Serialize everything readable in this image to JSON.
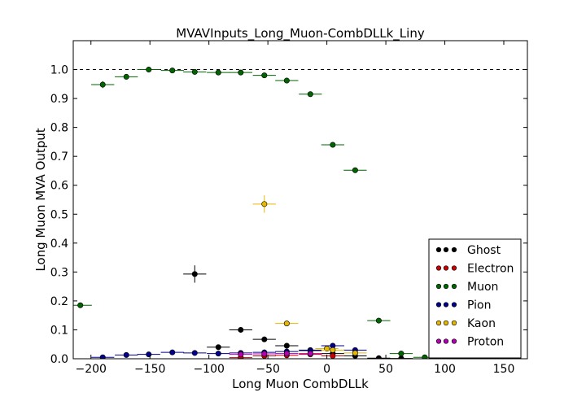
{
  "chart_data": {
    "type": "scatter",
    "title": "MVAVInputs_Long_Muon-CombDLLk_Liny",
    "xlabel": "Long Muon CombDLLk",
    "ylabel": "Long Muon MVA Output",
    "xlim": [
      -215,
      170
    ],
    "ylim": [
      0.0,
      1.1
    ],
    "xticks": [
      -200,
      -150,
      -100,
      -50,
      0,
      50,
      100,
      150
    ],
    "xtick_labels": [
      "−200",
      "−150",
      "−100",
      "−50",
      "0",
      "50",
      "100",
      "150"
    ],
    "yticks": [
      0.0,
      0.1,
      0.2,
      0.3,
      0.4,
      0.5,
      0.6,
      0.7,
      0.8,
      0.9,
      1.0
    ],
    "ytick_labels": [
      "0.0",
      "0.1",
      "0.2",
      "0.3",
      "0.4",
      "0.5",
      "0.6",
      "0.7",
      "0.8",
      "0.9",
      "1.0"
    ],
    "reference_line": {
      "y": 1.0,
      "style": "dashed"
    },
    "grid": false,
    "legend_position": "lower-right",
    "bin_half_width": 9.75,
    "series": [
      {
        "name": "Ghost",
        "color": "#000000",
        "points": [
          {
            "x": -112,
            "y": 0.293,
            "yerr": 0.03
          },
          {
            "x": -92,
            "y": 0.04,
            "yerr": 0.006
          },
          {
            "x": -73,
            "y": 0.1,
            "yerr": 0.006
          },
          {
            "x": -53,
            "y": 0.067,
            "yerr": 0.005
          },
          {
            "x": -34,
            "y": 0.045,
            "yerr": 0.004
          },
          {
            "x": -14,
            "y": 0.03,
            "yerr": 0.003
          },
          {
            "x": 5,
            "y": 0.018,
            "yerr": 0.003
          },
          {
            "x": 24,
            "y": 0.01,
            "yerr": 0.002
          },
          {
            "x": 44,
            "y": 0.002,
            "yerr": 0.001
          },
          {
            "x": 63,
            "y": 0.001,
            "yerr": 0.001
          }
        ]
      },
      {
        "name": "Electron",
        "color": "#cc0000",
        "points": [
          {
            "x": -73,
            "y": 0.004,
            "yerr": 0.002
          },
          {
            "x": -53,
            "y": 0.01,
            "yerr": 0.002
          },
          {
            "x": -34,
            "y": 0.012,
            "yerr": 0.002
          },
          {
            "x": -14,
            "y": 0.015,
            "yerr": 0.002
          },
          {
            "x": 5,
            "y": 0.01,
            "yerr": 0.002
          }
        ]
      },
      {
        "name": "Muon",
        "color": "#006400",
        "points": [
          {
            "x": -209,
            "y": 0.185,
            "yerr": 0.004
          },
          {
            "x": -190,
            "y": 0.948,
            "yerr": 0.012
          },
          {
            "x": -170,
            "y": 0.975,
            "yerr": 0.005
          },
          {
            "x": -151,
            "y": 1.0,
            "yerr": 0.002
          },
          {
            "x": -131,
            "y": 0.997,
            "yerr": 0.003
          },
          {
            "x": -112,
            "y": 0.992,
            "yerr": 0.003
          },
          {
            "x": -92,
            "y": 0.99,
            "yerr": 0.003
          },
          {
            "x": -73,
            "y": 0.99,
            "yerr": 0.004
          },
          {
            "x": -53,
            "y": 0.98,
            "yerr": 0.004
          },
          {
            "x": -34,
            "y": 0.962,
            "yerr": 0.004
          },
          {
            "x": -14,
            "y": 0.915,
            "yerr": 0.005
          },
          {
            "x": 5,
            "y": 0.74,
            "yerr": 0.005
          },
          {
            "x": 24,
            "y": 0.652,
            "yerr": 0.005
          },
          {
            "x": 44,
            "y": 0.132,
            "yerr": 0.004
          },
          {
            "x": 63,
            "y": 0.018,
            "yerr": 0.002
          },
          {
            "x": 83,
            "y": 0.005,
            "yerr": 0.001
          },
          {
            "x": 102,
            "y": 0.001,
            "yerr": 0.001
          },
          {
            "x": 122,
            "y": 0.0,
            "yerr": 0.0
          },
          {
            "x": 141,
            "y": 0.0,
            "yerr": 0.0
          },
          {
            "x": 161,
            "y": 0.0,
            "yerr": 0.0
          }
        ]
      },
      {
        "name": "Pion",
        "color": "#00008b",
        "points": [
          {
            "x": -190,
            "y": 0.005,
            "yerr": 0.002
          },
          {
            "x": -170,
            "y": 0.013,
            "yerr": 0.002
          },
          {
            "x": -151,
            "y": 0.015,
            "yerr": 0.002
          },
          {
            "x": -131,
            "y": 0.022,
            "yerr": 0.002
          },
          {
            "x": -112,
            "y": 0.02,
            "yerr": 0.002
          },
          {
            "x": -92,
            "y": 0.018,
            "yerr": 0.002
          },
          {
            "x": -73,
            "y": 0.02,
            "yerr": 0.002
          },
          {
            "x": -53,
            "y": 0.022,
            "yerr": 0.002
          },
          {
            "x": -34,
            "y": 0.025,
            "yerr": 0.002
          },
          {
            "x": -14,
            "y": 0.028,
            "yerr": 0.002
          },
          {
            "x": 5,
            "y": 0.045,
            "yerr": 0.003
          },
          {
            "x": 24,
            "y": 0.03,
            "yerr": 0.003
          }
        ]
      },
      {
        "name": "Kaon",
        "color": "#e6b800",
        "points": [
          {
            "x": -53,
            "y": 0.535,
            "yerr": 0.03
          },
          {
            "x": -34,
            "y": 0.122,
            "yerr": 0.006
          },
          {
            "x": 0,
            "y": 0.035,
            "yerr": 0.004
          },
          {
            "x": 5,
            "y": 0.03,
            "yerr": 0.003
          },
          {
            "x": 24,
            "y": 0.02,
            "yerr": 0.003
          }
        ]
      },
      {
        "name": "Proton",
        "color": "#b300b3",
        "points": [
          {
            "x": -73,
            "y": 0.015,
            "yerr": 0.002
          },
          {
            "x": -53,
            "y": 0.017,
            "yerr": 0.002
          },
          {
            "x": -34,
            "y": 0.018,
            "yerr": 0.002
          },
          {
            "x": -14,
            "y": 0.018,
            "yerr": 0.002
          }
        ]
      }
    ]
  }
}
